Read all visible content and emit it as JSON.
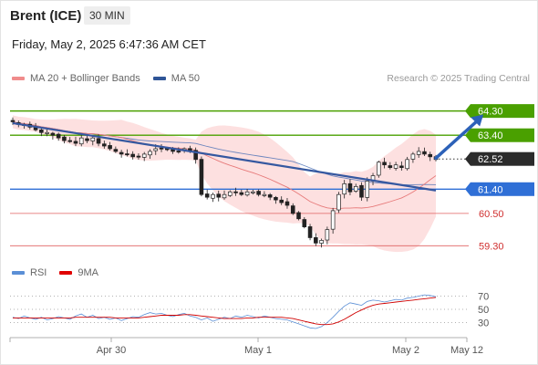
{
  "header": {
    "title": "Brent (ICE)",
    "interval": "30 MIN",
    "datetime": "Friday, May 2, 2025 6:47:36 AM CET",
    "credit": "Research © 2025 Trading Central"
  },
  "legend": {
    "price": [
      {
        "label": "MA 20 + Bollinger Bands",
        "color": "#f08c8c"
      },
      {
        "label": "MA 50",
        "color": "#2f5597"
      }
    ],
    "rsi": [
      {
        "label": "RSI",
        "color": "#5b8fd6"
      },
      {
        "label": "9MA",
        "color": "#e00000"
      }
    ]
  },
  "chart_data": [
    {
      "type": "candlestick",
      "title": "",
      "x_ticks": [
        "Apr 30",
        "May 1",
        "May 2",
        "May 12"
      ],
      "current_price": 62.52,
      "levels": [
        {
          "value": 64.3,
          "label": "64.30",
          "style": "resistance",
          "color": "#4aa000"
        },
        {
          "value": 63.4,
          "label": "63.40",
          "style": "resistance",
          "color": "#4aa000"
        },
        {
          "value": 61.4,
          "label": "61.40",
          "style": "pivot",
          "color": "#2f6fd6"
        },
        {
          "value": 60.5,
          "label": "60.50",
          "style": "support",
          "color": "#e06060"
        },
        {
          "value": 59.3,
          "label": "59.30",
          "style": "support",
          "color": "#e06060"
        }
      ],
      "closes": [
        63.9,
        63.8,
        63.8,
        63.7,
        63.6,
        63.5,
        63.5,
        63.4,
        63.3,
        63.2,
        63.2,
        63.1,
        63.3,
        63.2,
        63.3,
        63.1,
        63.0,
        62.9,
        62.8,
        62.7,
        62.7,
        62.6,
        62.6,
        62.7,
        62.8,
        62.9,
        62.9,
        62.9,
        62.8,
        62.8,
        62.9,
        62.8,
        62.5,
        61.2,
        61.1,
        61.2,
        61.1,
        61.2,
        61.3,
        61.3,
        61.2,
        61.3,
        61.3,
        61.2,
        61.2,
        61.1,
        61.0,
        60.9,
        60.8,
        60.5,
        60.3,
        60.0,
        59.6,
        59.4,
        59.5,
        59.9,
        60.6,
        61.2,
        61.6,
        61.3,
        61.5,
        61.1,
        61.7,
        61.9,
        62.4,
        62.3,
        62.2,
        62.3,
        62.2,
        62.5,
        62.7,
        62.8,
        62.7,
        62.6,
        62.5
      ],
      "trend_line": [
        {
          "i": 0,
          "v": 63.85
        },
        {
          "i": 74,
          "v": 61.35
        }
      ],
      "forecast_arrow": [
        {
          "i": 74,
          "v": 62.55
        },
        {
          "i": 82,
          "v": 64.1
        }
      ],
      "ylim": [
        58.6,
        65.1
      ]
    },
    {
      "type": "line",
      "title": "RSI",
      "y_ticks": [
        70,
        50,
        30
      ],
      "ylim": [
        10,
        90
      ],
      "series": [
        {
          "name": "RSI",
          "values": [
            38,
            36,
            40,
            37,
            35,
            38,
            34,
            36,
            39,
            37,
            35,
            40,
            43,
            38,
            41,
            36,
            38,
            35,
            37,
            33,
            36,
            39,
            38,
            42,
            45,
            43,
            44,
            41,
            39,
            42,
            44,
            40,
            38,
            34,
            37,
            32,
            35,
            38,
            36,
            40,
            38,
            41,
            39,
            37,
            40,
            38,
            36,
            35,
            34,
            31,
            28,
            25,
            22,
            21,
            24,
            30,
            38,
            47,
            55,
            60,
            58,
            56,
            62,
            64,
            63,
            61,
            63,
            65,
            64,
            67,
            68,
            70,
            72,
            71,
            69
          ]
        },
        {
          "name": "9MA",
          "values": [
            37,
            37,
            37,
            37,
            37,
            37,
            37,
            37,
            37,
            37,
            37,
            38,
            38,
            38,
            38,
            38,
            38,
            38,
            37,
            37,
            37,
            37,
            37,
            38,
            39,
            40,
            41,
            41,
            41,
            41,
            42,
            42,
            41,
            40,
            39,
            38,
            37,
            36,
            36,
            36,
            36,
            37,
            37,
            38,
            38,
            38,
            38,
            38,
            37,
            36,
            34,
            32,
            30,
            28,
            27,
            27,
            28,
            31,
            35,
            40,
            45,
            49,
            53,
            56,
            58,
            59,
            60,
            61,
            62,
            63,
            64,
            65,
            66,
            67,
            68
          ]
        }
      ]
    }
  ]
}
